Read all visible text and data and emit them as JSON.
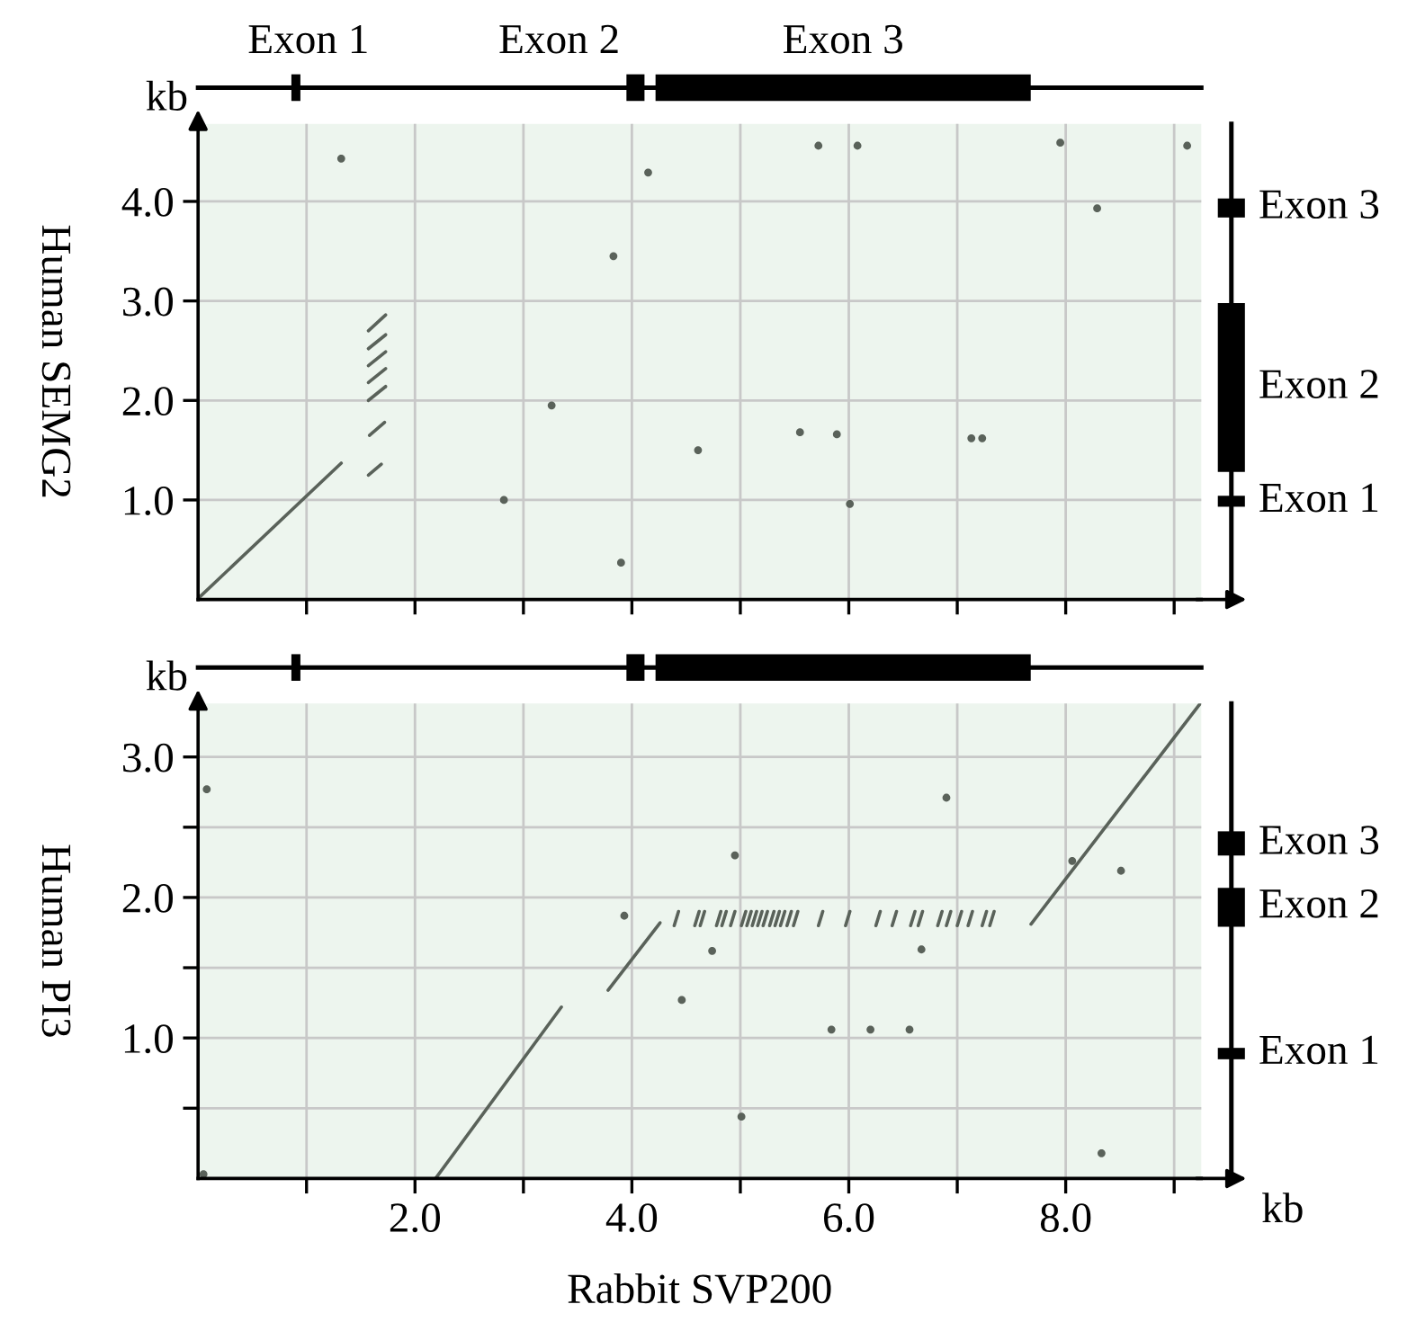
{
  "chart_data": [
    {
      "type": "line",
      "ylabel": "Human SEMG2",
      "annotations": [
        "kb",
        "Exon 1",
        "Exon 2",
        "Exon 3",
        "Exon 3",
        "Exon 2",
        "Exon 1"
      ],
      "xlim": [
        0,
        9.25
      ],
      "ylim": [
        0,
        4.78
      ],
      "xticks": [
        {
          "value": 1,
          "label": null
        },
        {
          "value": 2,
          "label": null
        },
        {
          "value": 3,
          "label": null
        },
        {
          "value": 4,
          "label": null
        },
        {
          "value": 5,
          "label": null
        },
        {
          "value": 6,
          "label": null
        },
        {
          "value": 7,
          "label": null
        },
        {
          "value": 8,
          "label": null
        },
        {
          "value": 9,
          "label": null
        }
      ],
      "yticks": [
        {
          "value": 1,
          "label": "1.0"
        },
        {
          "value": 2,
          "label": "2.0"
        },
        {
          "value": 3,
          "label": "3.0"
        },
        {
          "value": 4,
          "label": "4.0"
        }
      ],
      "grid": true,
      "tick_labels": "y",
      "line_style": "solid",
      "series": [
        {
          "color": "#5a625a",
          "x": [
            0.01,
            1.32
          ],
          "values": [
            0.02,
            1.37
          ]
        },
        {
          "color": "#5a625a",
          "x": [
            1.57,
            1.69
          ],
          "values": [
            1.25,
            1.36
          ]
        },
        {
          "color": "#5a625a",
          "x": [
            1.58,
            1.72
          ],
          "values": [
            1.65,
            1.78
          ]
        },
        {
          "color": "#5a625a",
          "x": [
            1.57,
            1.73
          ],
          "values": [
            2.0,
            2.14
          ]
        },
        {
          "color": "#5a625a",
          "x": [
            1.57,
            1.73
          ],
          "values": [
            2.18,
            2.32
          ]
        },
        {
          "color": "#5a625a",
          "x": [
            1.57,
            1.73
          ],
          "values": [
            2.35,
            2.49
          ]
        },
        {
          "color": "#5a625a",
          "x": [
            1.57,
            1.73
          ],
          "values": [
            2.52,
            2.66
          ]
        },
        {
          "color": "#5a625a",
          "x": [
            1.57,
            1.73
          ],
          "values": [
            2.7,
            2.86
          ]
        },
        {
          "type": "scatter",
          "marker": "circle",
          "color": "#5a625a",
          "x": [
            1.32,
            4.15,
            3.83,
            3.26,
            2.82,
            3.9,
            4.61,
            5.55,
            5.89,
            6.01,
            7.13,
            7.23,
            5.72,
            6.08,
            7.95,
            8.29,
            9.12
          ],
          "values": [
            4.43,
            4.29,
            3.45,
            1.95,
            1.0,
            0.37,
            1.5,
            1.68,
            1.66,
            0.96,
            1.62,
            1.62,
            4.56,
            4.56,
            4.59,
            3.93,
            4.56
          ]
        }
      ]
    },
    {
      "type": "line",
      "ylabel": "Human PI3",
      "xlabel": "Rabbit SVP200",
      "annotations": [
        "kb",
        "kb",
        "Exon 3",
        "Exon 2",
        "Exon 1"
      ],
      "xlim": [
        0,
        9.25
      ],
      "ylim": [
        0,
        3.38
      ],
      "xticks": [
        {
          "value": 1,
          "label": null
        },
        {
          "value": 2,
          "label": "2.0"
        },
        {
          "value": 3,
          "label": null
        },
        {
          "value": 4,
          "label": "4.0"
        },
        {
          "value": 5,
          "label": null
        },
        {
          "value": 6,
          "label": "6.0"
        },
        {
          "value": 7,
          "label": null
        },
        {
          "value": 8,
          "label": "8.0"
        },
        {
          "value": 9,
          "label": null
        }
      ],
      "yticks": [
        {
          "value": 0.5,
          "label": null
        },
        {
          "value": 1,
          "label": "1.0"
        },
        {
          "value": 1.5,
          "label": null
        },
        {
          "value": 2,
          "label": "2.0"
        },
        {
          "value": 2.5,
          "label": null
        },
        {
          "value": 3,
          "label": "3.0"
        }
      ],
      "grid": true,
      "line_style": "solid",
      "series": [
        {
          "color": "#5a625a",
          "x": [
            2.19,
            3.35
          ],
          "values": [
            0.0,
            1.22
          ]
        },
        {
          "color": "#5a625a",
          "x": [
            3.78,
            4.26
          ],
          "values": [
            1.34,
            1.82
          ]
        },
        {
          "color": "#5a625a",
          "x": [
            4.39,
            4.43
          ],
          "values": [
            1.8,
            1.9
          ]
        },
        {
          "color": "#5a625a",
          "x": [
            4.58,
            4.62
          ],
          "values": [
            1.8,
            1.9
          ]
        },
        {
          "color": "#5a625a",
          "x": [
            4.63,
            4.67
          ],
          "values": [
            1.8,
            1.9
          ]
        },
        {
          "color": "#5a625a",
          "x": [
            4.78,
            4.82
          ],
          "values": [
            1.8,
            1.9
          ]
        },
        {
          "color": "#5a625a",
          "x": [
            4.83,
            4.87
          ],
          "values": [
            1.8,
            1.9
          ]
        },
        {
          "color": "#5a625a",
          "x": [
            4.91,
            4.95
          ],
          "values": [
            1.8,
            1.9
          ]
        },
        {
          "color": "#5a625a",
          "x": [
            5.01,
            5.05
          ],
          "values": [
            1.8,
            1.9
          ]
        },
        {
          "color": "#5a625a",
          "x": [
            5.06,
            5.1
          ],
          "values": [
            1.8,
            1.9
          ]
        },
        {
          "color": "#5a625a",
          "x": [
            5.11,
            5.15
          ],
          "values": [
            1.8,
            1.9
          ]
        },
        {
          "color": "#5a625a",
          "x": [
            5.16,
            5.2
          ],
          "values": [
            1.8,
            1.9
          ]
        },
        {
          "color": "#5a625a",
          "x": [
            5.21,
            5.25
          ],
          "values": [
            1.8,
            1.9
          ]
        },
        {
          "color": "#5a625a",
          "x": [
            5.27,
            5.31
          ],
          "values": [
            1.8,
            1.9
          ]
        },
        {
          "color": "#5a625a",
          "x": [
            5.32,
            5.36
          ],
          "values": [
            1.8,
            1.9
          ]
        },
        {
          "color": "#5a625a",
          "x": [
            5.37,
            5.41
          ],
          "values": [
            1.8,
            1.9
          ]
        },
        {
          "color": "#5a625a",
          "x": [
            5.43,
            5.47
          ],
          "values": [
            1.8,
            1.9
          ]
        },
        {
          "color": "#5a625a",
          "x": [
            5.49,
            5.53
          ],
          "values": [
            1.8,
            1.9
          ]
        },
        {
          "color": "#5a625a",
          "x": [
            5.72,
            5.76
          ],
          "values": [
            1.8,
            1.9
          ]
        },
        {
          "color": "#5a625a",
          "x": [
            5.97,
            6.01
          ],
          "values": [
            1.8,
            1.9
          ]
        },
        {
          "color": "#5a625a",
          "x": [
            6.25,
            6.29
          ],
          "values": [
            1.8,
            1.9
          ]
        },
        {
          "color": "#5a625a",
          "x": [
            6.4,
            6.44
          ],
          "values": [
            1.8,
            1.9
          ]
        },
        {
          "color": "#5a625a",
          "x": [
            6.57,
            6.61
          ],
          "values": [
            1.8,
            1.9
          ]
        },
        {
          "color": "#5a625a",
          "x": [
            6.64,
            6.68
          ],
          "values": [
            1.8,
            1.9
          ]
        },
        {
          "color": "#5a625a",
          "x": [
            6.82,
            6.86
          ],
          "values": [
            1.8,
            1.9
          ]
        },
        {
          "color": "#5a625a",
          "x": [
            6.9,
            6.94
          ],
          "values": [
            1.8,
            1.9
          ]
        },
        {
          "color": "#5a625a",
          "x": [
            7.0,
            7.04
          ],
          "values": [
            1.8,
            1.9
          ]
        },
        {
          "color": "#5a625a",
          "x": [
            7.1,
            7.14
          ],
          "values": [
            1.8,
            1.9
          ]
        },
        {
          "color": "#5a625a",
          "x": [
            7.23,
            7.27
          ],
          "values": [
            1.8,
            1.9
          ]
        },
        {
          "color": "#5a625a",
          "x": [
            7.3,
            7.34
          ],
          "values": [
            1.8,
            1.9
          ]
        },
        {
          "color": "#5a625a",
          "x": [
            7.68,
            9.24
          ],
          "values": [
            1.81,
            3.38
          ]
        },
        {
          "type": "scatter",
          "marker": "circle",
          "color": "#5a625a",
          "x": [
            0.08,
            0.05,
            4.95,
            3.93,
            4.74,
            4.46,
            5.01,
            5.84,
            6.2,
            6.56,
            6.67,
            6.9,
            8.06,
            8.51,
            8.33
          ],
          "values": [
            2.77,
            0.03,
            2.3,
            1.87,
            1.62,
            1.27,
            0.44,
            1.06,
            1.06,
            1.06,
            1.63,
            2.71,
            2.26,
            2.19,
            0.18
          ]
        }
      ]
    }
  ]
}
